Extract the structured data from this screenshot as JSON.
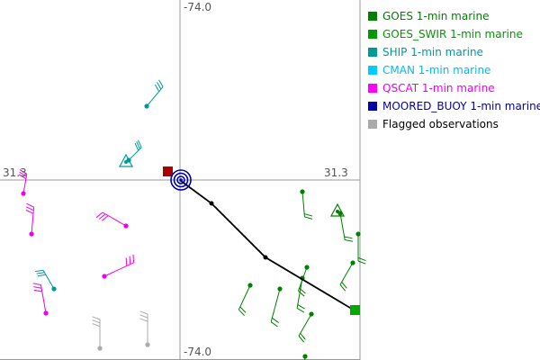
{
  "axes": {
    "top_label": "-74.0",
    "bottom_label": "-74.0",
    "left_label": "31.3",
    "right_label": "31.3"
  },
  "legend": [
    {
      "label": "GOES 1-min marine",
      "color": "#008000",
      "text_color": "#008000"
    },
    {
      "label": "GOES_SWIR 1-min marine",
      "color": "#009900",
      "text_color": "#009900"
    },
    {
      "label": "SHIP 1-min marine",
      "color": "#009999",
      "text_color": "#009999"
    },
    {
      "label": "CMAN 1-min marine",
      "color": "#00ccff",
      "text_color": "#00bbee"
    },
    {
      "label": "QSCAT 1-min marine",
      "color": "#ff00ff",
      "text_color": "#ee00ee"
    },
    {
      "label": "MOORED_BUOY 1-min marine",
      "color": "#0000aa",
      "text_color": "#0000aa"
    },
    {
      "label": "Flagged observations",
      "color": "#aaaaaa",
      "text_color": "#000000"
    }
  ],
  "colors": {
    "goes": "#008000",
    "ship": "#009999",
    "qscat": "#ee00ee",
    "buoy": "#0000aa",
    "flagged": "#aaaaaa",
    "track": "#000000",
    "track_start": "#aa0000",
    "track_end": "#00aa00"
  }
}
